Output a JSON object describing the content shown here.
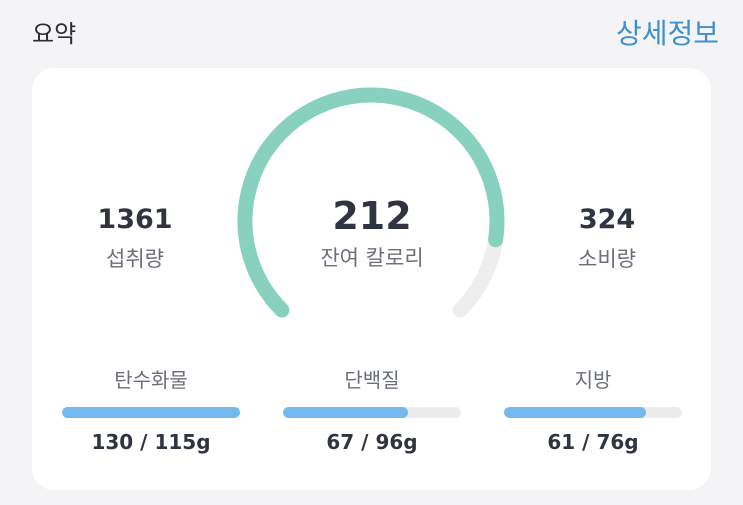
{
  "header": {
    "title": "요약",
    "detail_link": "상세정보"
  },
  "summary": {
    "intake": {
      "value": "1361",
      "label": "섭취량"
    },
    "remaining": {
      "value": "212",
      "label": "잔여 칼로리"
    },
    "burned": {
      "value": "324",
      "label": "소비량"
    },
    "gauge_fraction": 0.865,
    "colors": {
      "gauge": "#88d1bf",
      "track": "#eeeeef",
      "bar": "#74b9ee"
    }
  },
  "macros": [
    {
      "label": "탄수화물",
      "value": "130 / 115g",
      "fraction": 1.0
    },
    {
      "label": "단백질",
      "value": "67 / 96g",
      "fraction": 0.7
    },
    {
      "label": "지방",
      "value": "61 / 76g",
      "fraction": 0.8
    }
  ]
}
